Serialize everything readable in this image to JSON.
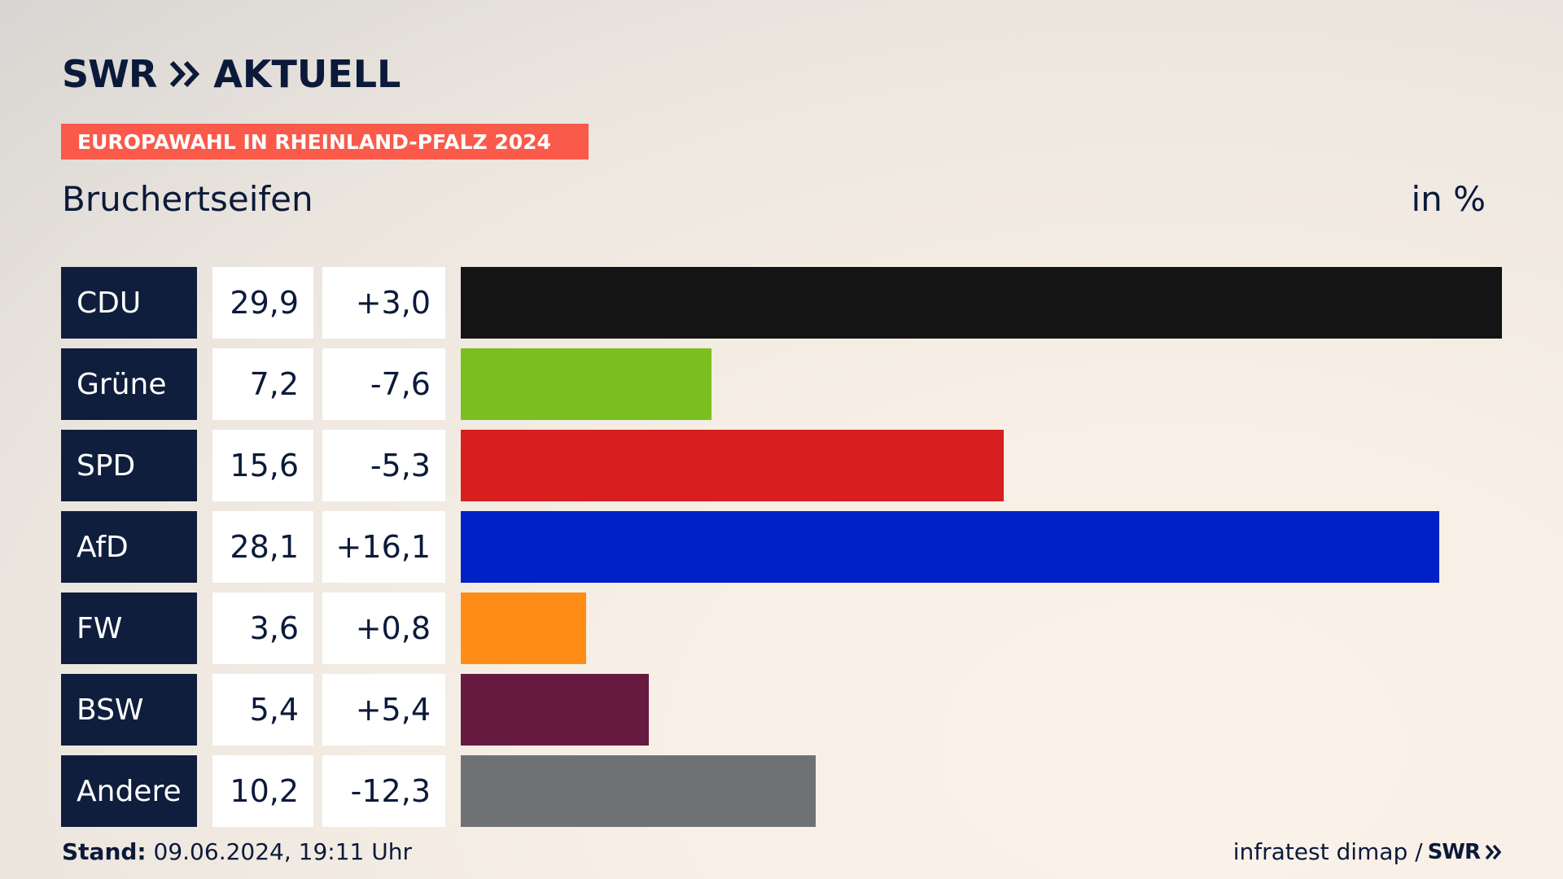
{
  "brand": {
    "swr": "SWR",
    "aktuell": "AKTUELL",
    "color": "#0b1a3a"
  },
  "banner": {
    "text": "EUROPAWAHL IN RHEINLAND-PFALZ 2024",
    "color": "#fa5a4a"
  },
  "header": {
    "location": "Bruchertseifen",
    "unit": "in %"
  },
  "chart_data": {
    "type": "bar",
    "orientation": "horizontal",
    "title": "Bruchertseifen",
    "unit_label": "in %",
    "categories": [
      "CDU",
      "Grüne",
      "SPD",
      "AfD",
      "FW",
      "BSW",
      "Andere"
    ],
    "values": [
      29.9,
      7.2,
      15.6,
      28.1,
      3.6,
      5.4,
      10.2
    ],
    "value_labels": [
      "29,9",
      "7,2",
      "15,6",
      "28,1",
      "3,6",
      "5,4",
      "10,2"
    ],
    "change_labels": [
      "+3,0",
      "-7,6",
      "-5,3",
      "+16,1",
      "+0,8",
      "+5,4",
      "-12,3"
    ],
    "changes": [
      3.0,
      -7.6,
      -5.3,
      16.1,
      0.8,
      5.4,
      -12.3
    ],
    "colors": [
      "#141414",
      "#7bbf1e",
      "#d71f1f",
      "#0020c8",
      "#ff8c17",
      "#661a3f",
      "#707174"
    ],
    "xlim": [
      0,
      29.9
    ]
  },
  "footer": {
    "stand_label": "Stand:",
    "stand_value": "09.06.2024, 19:11 Uhr",
    "source": "infratest dimap /",
    "source_brand": "SWR"
  }
}
